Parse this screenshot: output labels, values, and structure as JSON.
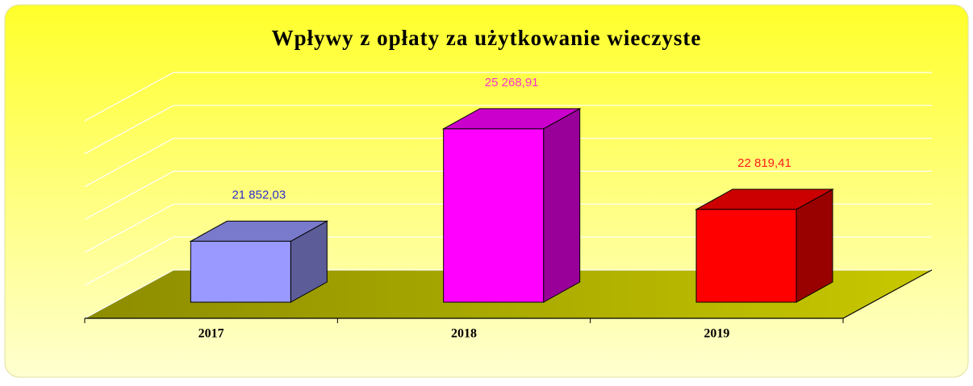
{
  "chart_data": {
    "type": "bar3d",
    "title": "Wpływy z opłaty za użytkowanie wieczyste",
    "categories": [
      "2017",
      "2018",
      "2019"
    ],
    "values": [
      21852.03,
      25268.91,
      22819.41
    ],
    "value_labels": [
      "21 852,03",
      "25 268,91",
      "22 819,41"
    ],
    "colors": [
      "#9999ff",
      "#ff00ff",
      "#ff0000"
    ],
    "label_colors": [
      "#2e2ecc",
      "#ff33cc",
      "#ff1a1a"
    ],
    "ylim": [
      20000,
      26000
    ],
    "yticks": [
      20000,
      21000,
      22000,
      23000,
      24000,
      25000,
      26000
    ],
    "grid": true
  }
}
